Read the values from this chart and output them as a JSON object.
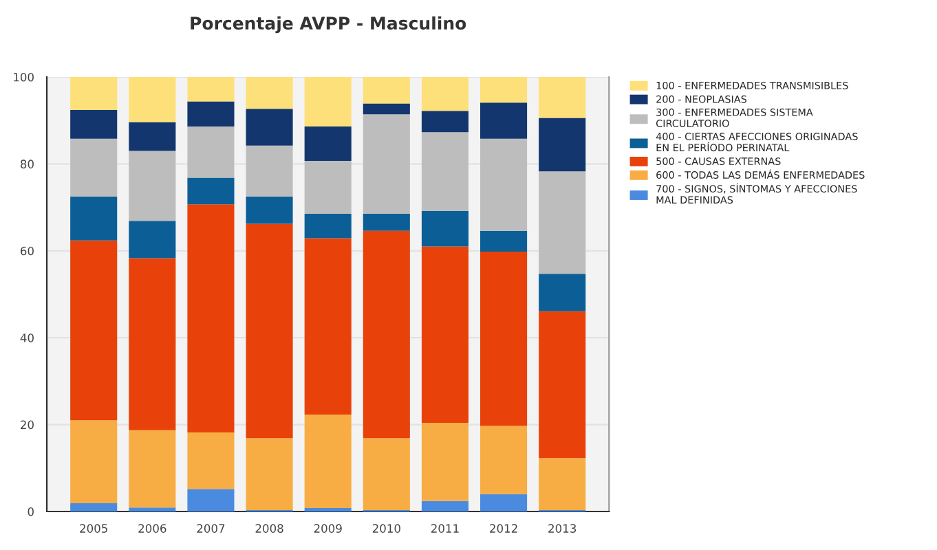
{
  "chart_data": {
    "type": "bar",
    "title": "Porcentaje AVPP - Masculino",
    "stacked": true,
    "categories": [
      "2005",
      "2006",
      "2007",
      "2008",
      "2009",
      "2010",
      "2011",
      "2012",
      "2013"
    ],
    "ylim": [
      0,
      100
    ],
    "yticks": [
      0,
      20,
      40,
      60,
      80,
      100
    ],
    "grid": "y",
    "legend": "top right",
    "series": [
      {
        "name": "700 - SIGNOS, SÍNTOMAS Y AFECCIONES MAL DEFINIDAS",
        "color": "#4a8be0",
        "values": [
          1.9,
          0.9,
          5.2,
          0.3,
          0.8,
          0.3,
          2.4,
          4.0,
          0.3
        ]
      },
      {
        "name": "600 - TODAS LAS DEMÁS ENFERMEDADES",
        "color": "#f7ad43",
        "values": [
          19.1,
          17.8,
          13.0,
          16.6,
          21.5,
          16.6,
          18.0,
          15.7,
          12.0
        ]
      },
      {
        "name": "500 - CAUSAS EXTERNAS",
        "color": "#e8420a",
        "values": [
          41.4,
          39.6,
          52.5,
          49.3,
          40.6,
          47.7,
          40.6,
          40.1,
          33.8
        ]
      },
      {
        "name": "400 - CIERTAS AFECCIONES ORIGINADAS EN EL PERÍODO PERINATAL",
        "color": "#0b5f96",
        "values": [
          10.1,
          8.6,
          6.1,
          6.3,
          5.6,
          3.9,
          8.2,
          4.8,
          8.6
        ]
      },
      {
        "name": "300 - ENFERMEDADES SISTEMA CIRCULATORIO",
        "color": "#bdbdbd",
        "values": [
          13.3,
          16.1,
          11.8,
          11.7,
          12.2,
          22.9,
          18.1,
          21.2,
          23.6
        ]
      },
      {
        "name": "200 - NEOPLASIAS",
        "color": "#13366e",
        "values": [
          6.6,
          6.6,
          5.8,
          8.5,
          7.9,
          2.5,
          4.9,
          8.3,
          12.3
        ]
      },
      {
        "name": "100 - ENFERMEDADES TRANSMISIBLES",
        "color": "#fde07a",
        "values": [
          7.6,
          10.4,
          5.6,
          7.3,
          11.4,
          6.1,
          7.8,
          5.9,
          9.4
        ]
      }
    ]
  }
}
